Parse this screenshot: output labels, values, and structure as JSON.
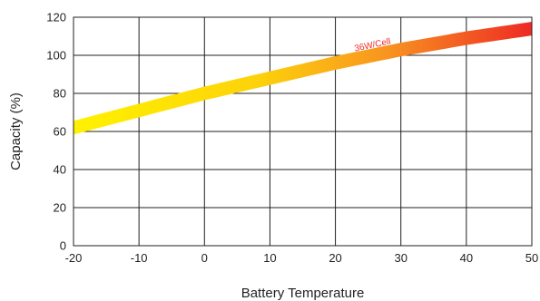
{
  "chart_data": {
    "type": "line",
    "xlabel": "Battery Temperature",
    "ylabel": "Capacity (%)",
    "xlim": [
      -20,
      50
    ],
    "ylim": [
      0,
      120
    ],
    "x_ticks": [
      -20,
      -10,
      0,
      10,
      20,
      30,
      40,
      50
    ],
    "y_ticks": [
      0,
      20,
      40,
      60,
      80,
      100,
      120
    ],
    "grid": true,
    "annotation": {
      "text": "36W/Cell",
      "color": "#ee2a24",
      "x": 23,
      "y": 102
    },
    "series": [
      {
        "name": "36W/Cell",
        "x": [
          -20,
          -10,
          0,
          10,
          20,
          30,
          40,
          50
        ],
        "values": [
          62,
          71,
          80,
          88,
          96,
          103,
          109,
          114
        ]
      }
    ],
    "band_half_width_percent": 3.6,
    "gradient_colors": [
      "#fff200",
      "#fdd20a",
      "#f89520",
      "#ee2a24"
    ]
  }
}
